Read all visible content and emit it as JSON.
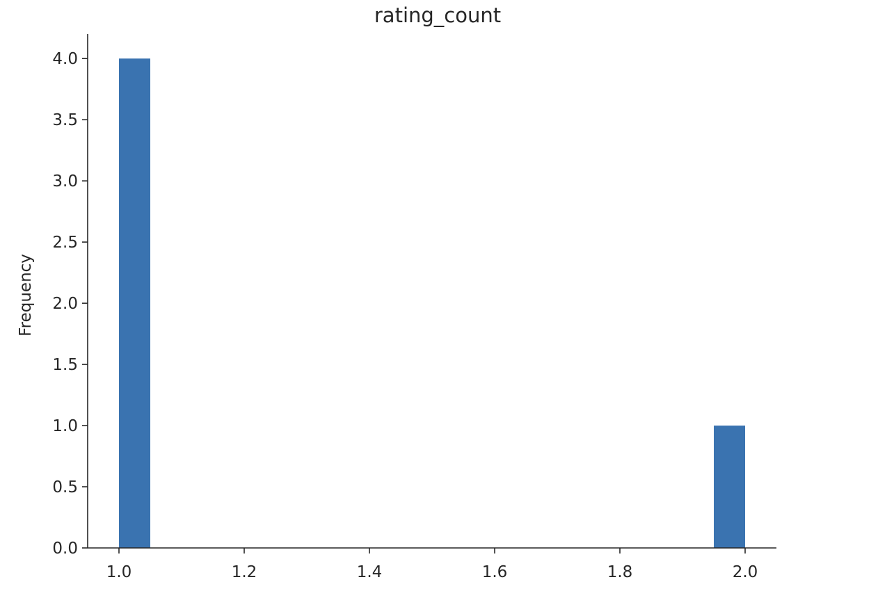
{
  "chart_data": {
    "type": "bar",
    "title": "rating_count",
    "xlabel": "",
    "ylabel": "Frequency",
    "x_ticks": [
      "1.0",
      "1.2",
      "1.4",
      "1.6",
      "1.8",
      "2.0"
    ],
    "y_ticks": [
      "0.0",
      "0.5",
      "1.0",
      "1.5",
      "2.0",
      "2.5",
      "3.0",
      "3.5",
      "4.0"
    ],
    "xlim": [
      0.95,
      2.05
    ],
    "ylim": [
      0,
      4.2
    ],
    "bins": [
      {
        "x_start": 1.0,
        "x_end": 1.05,
        "value": 4
      },
      {
        "x_start": 1.95,
        "x_end": 2.0,
        "value": 1
      }
    ],
    "grid": false,
    "bar_color": "#3a73b0",
    "axis_color": "#262626"
  }
}
